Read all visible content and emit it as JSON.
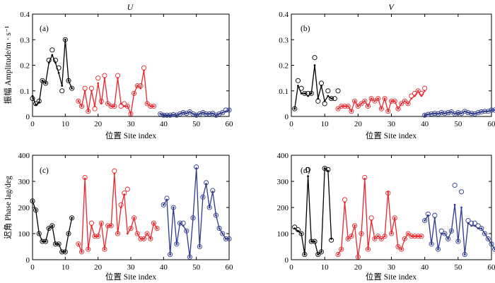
{
  "chart_data": [
    {
      "type": "line",
      "panel_label": "(a)",
      "title": "U",
      "xlabel": "位置 Site index",
      "ylabel": "振幅 Amplitude/m · s⁻¹",
      "xlim": [
        0,
        60
      ],
      "ylim": [
        0,
        0.4
      ],
      "xticks": [
        "0",
        "10",
        "20",
        "30",
        "40",
        "50",
        "60"
      ],
      "yticks": [
        "0",
        "0.1",
        "0.2",
        "0.3",
        "0.4"
      ],
      "grid": false,
      "series": [
        {
          "color": "#000000",
          "x": [
            0,
            1,
            2,
            3,
            4,
            5,
            6,
            7,
            8,
            9,
            10,
            11,
            12,
            13
          ],
          "line": [
            0.08,
            0.045,
            0.055,
            0.14,
            0.13,
            0.21,
            0.24,
            0.21,
            0.17,
            0.12,
            0.3,
            0.14,
            0.11,
            null
          ],
          "markers": [
            0.07,
            0.05,
            0.06,
            0.14,
            0.13,
            0.22,
            0.26,
            0.22,
            0.19,
            0.1,
            0.3,
            0.14,
            0.11,
            null
          ]
        },
        {
          "color": "#e8272d",
          "x": [
            14,
            15,
            16,
            17,
            18,
            19,
            20,
            21,
            22,
            23,
            24,
            25,
            26,
            27,
            28,
            29,
            30,
            31,
            32,
            33,
            34,
            35,
            36,
            37
          ],
          "line": [
            0.06,
            0.04,
            0.1,
            0.02,
            0.1,
            0.04,
            0.13,
            0.05,
            0.15,
            0.05,
            0.04,
            0.04,
            0.15,
            0.05,
            0.04,
            0.04,
            0.01,
            0.09,
            0.12,
            0.11,
            0.18,
            0.05,
            0.04,
            0.04
          ],
          "markers": [
            0.06,
            0.04,
            0.11,
            0.02,
            0.11,
            0.03,
            0.15,
            0.06,
            0.16,
            0.05,
            0.04,
            0.04,
            0.16,
            0.04,
            0.05,
            0.04,
            0.01,
            0.09,
            0.12,
            0.12,
            0.19,
            0.05,
            0.04,
            0.04
          ]
        },
        {
          "color": "#2e3a8c",
          "x": [
            39,
            40,
            41,
            42,
            43,
            44,
            45,
            46,
            47,
            48,
            49,
            50,
            51,
            52,
            53,
            54,
            55,
            56,
            57,
            58,
            59,
            60
          ],
          "line": [
            0.01,
            0.005,
            0.005,
            0.005,
            0.007,
            0.005,
            0.01,
            0.015,
            0.012,
            0.018,
            0.01,
            0.005,
            0.01,
            0.015,
            0.01,
            0.01,
            0.012,
            0.005,
            0.01,
            0.015,
            0.02,
            0.025
          ],
          "markers": [
            0.01,
            0.005,
            0.005,
            0.005,
            0.007,
            0.005,
            0.01,
            0.015,
            0.012,
            0.018,
            0.01,
            0.005,
            0.01,
            0.015,
            0.01,
            0.01,
            0.012,
            0.005,
            0.01,
            0.015,
            0.025,
            0.025
          ]
        }
      ]
    },
    {
      "type": "line",
      "panel_label": "(b)",
      "title": "V",
      "xlabel": "位置 Site index",
      "ylabel": "",
      "xlim": [
        0,
        60
      ],
      "ylim": [
        0,
        0.4
      ],
      "xticks": [
        "0",
        "10",
        "20",
        "30",
        "40",
        "50",
        "60"
      ],
      "yticks": [
        "0",
        "0.1",
        "0.2",
        "0.3",
        "0.4"
      ],
      "grid": false,
      "series": [
        {
          "color": "#000000",
          "x": [
            1,
            2,
            3,
            4,
            5,
            6,
            7,
            8,
            9,
            10,
            11,
            12,
            13,
            14
          ],
          "line": [
            0.03,
            0.12,
            0.09,
            0.09,
            0.08,
            0.09,
            0.2,
            0.07,
            0.12,
            0.06,
            0.08,
            0.07,
            null,
            null
          ],
          "markers": [
            0.03,
            0.14,
            0.11,
            0.09,
            0.09,
            0.09,
            0.23,
            0.06,
            0.13,
            0.05,
            0.1,
            0.07,
            0.07,
            0.1
          ]
        },
        {
          "color": "#e8272d",
          "x": [
            14,
            15,
            16,
            17,
            18,
            19,
            20,
            21,
            22,
            23,
            24,
            25,
            26,
            27,
            28,
            29,
            30,
            31,
            32,
            33,
            34,
            35,
            36,
            37,
            38,
            39,
            40
          ],
          "line": [
            0.03,
            0.04,
            0.04,
            0.04,
            0.02,
            0.06,
            0.04,
            0.05,
            0.06,
            0.04,
            0.07,
            0.06,
            0.07,
            0.03,
            0.07,
            0.02,
            0.06,
            0.06,
            0.03,
            0.05,
            0.06,
            0.05,
            0.07,
            0.08,
            0.1,
            0.08,
            0.1
          ],
          "markers": [
            0.03,
            0.04,
            0.04,
            0.04,
            0.02,
            0.06,
            0.04,
            0.05,
            0.06,
            0.04,
            0.07,
            0.06,
            0.07,
            0.03,
            0.07,
            0.02,
            0.06,
            0.06,
            0.03,
            0.05,
            0.06,
            0.05,
            0.08,
            0.09,
            0.1,
            0.09,
            0.11
          ]
        },
        {
          "color": "#2e3a8c",
          "x": [
            40,
            41,
            42,
            43,
            44,
            45,
            46,
            47,
            48,
            49,
            50,
            51,
            52,
            53,
            54,
            55,
            56,
            57,
            58,
            59,
            60,
            61
          ],
          "line": [
            0.005,
            0.008,
            0.01,
            0.012,
            0.01,
            0.015,
            0.012,
            0.015,
            0.018,
            0.01,
            0.015,
            0.012,
            0.02,
            0.015,
            0.012,
            0.01,
            0.015,
            0.018,
            0.02,
            0.02,
            0.025,
            0.025
          ],
          "markers": [
            0.005,
            0.008,
            0.01,
            0.012,
            0.01,
            0.015,
            0.012,
            0.015,
            0.018,
            0.01,
            0.015,
            0.012,
            0.02,
            0.015,
            0.012,
            0.01,
            0.015,
            0.018,
            0.02,
            0.02,
            0.025,
            0.025
          ]
        }
      ]
    },
    {
      "type": "line",
      "panel_label": "(c)",
      "title": "",
      "xlabel": "位置 Site index",
      "ylabel": "迟角 Phase lag/deg",
      "xlim": [
        0,
        60
      ],
      "ylim": [
        0,
        400
      ],
      "xticks": [
        "0",
        "10",
        "20",
        "30",
        "40",
        "50",
        "60"
      ],
      "yticks": [
        "0",
        "100",
        "200",
        "300",
        "400"
      ],
      "grid": false,
      "series": [
        {
          "color": "#000000",
          "x": [
            0,
            1,
            2,
            3,
            4,
            5,
            6,
            7,
            8,
            9,
            10,
            11,
            12,
            13
          ],
          "line": [
            225,
            190,
            100,
            70,
            70,
            120,
            130,
            60,
            60,
            30,
            30,
            100,
            160,
            null
          ],
          "markers": [
            225,
            190,
            100,
            70,
            70,
            120,
            130,
            60,
            60,
            30,
            30,
            100,
            160,
            null
          ]
        },
        {
          "color": "#e8272d",
          "x": [
            14,
            15,
            16,
            17,
            18,
            19,
            20,
            21,
            22,
            23,
            24,
            25,
            26,
            27,
            28,
            29,
            30,
            31,
            32,
            33,
            34,
            35,
            36,
            37,
            38
          ],
          "line": [
            60,
            30,
            310,
            40,
            130,
            90,
            90,
            140,
            40,
            130,
            130,
            330,
            100,
            200,
            250,
            100,
            120,
            160,
            100,
            80,
            80,
            100,
            80,
            140,
            120
          ],
          "markers": [
            60,
            30,
            315,
            40,
            140,
            90,
            90,
            140,
            40,
            130,
            130,
            340,
            100,
            210,
            255,
            270,
            120,
            160,
            100,
            80,
            80,
            100,
            80,
            140,
            120
          ]
        },
        {
          "color": "#2e3a8c",
          "x": [
            40,
            41,
            42,
            43,
            44,
            45,
            46,
            47,
            48,
            49,
            50,
            51,
            52,
            53,
            54,
            55,
            56,
            57,
            58,
            59,
            60
          ],
          "line": [
            210,
            230,
            20,
            200,
            60,
            140,
            130,
            110,
            10,
            160,
            350,
            50,
            240,
            290,
            200,
            260,
            170,
            120,
            100,
            80,
            80
          ],
          "markers": [
            210,
            235,
            20,
            200,
            60,
            140,
            140,
            110,
            10,
            160,
            355,
            50,
            240,
            295,
            200,
            265,
            170,
            120,
            100,
            80,
            80
          ]
        }
      ]
    },
    {
      "type": "line",
      "panel_label": "(d)",
      "title": "",
      "xlabel": "位置 Site index",
      "ylabel": "",
      "xlim": [
        0,
        60
      ],
      "ylim": [
        0,
        400
      ],
      "xticks": [
        "0",
        "10",
        "20",
        "30",
        "40",
        "50",
        "60"
      ],
      "yticks": [
        "0",
        "100",
        "200",
        "300",
        "400"
      ],
      "grid": false,
      "series": [
        {
          "color": "#000000",
          "x": [
            1,
            2,
            3,
            4,
            5,
            6,
            7,
            8,
            9,
            10,
            11,
            12,
            13,
            14
          ],
          "line": [
            120,
            110,
            100,
            20,
            320,
            70,
            70,
            20,
            30,
            350,
            340,
            80,
            null,
            null
          ],
          "markers": [
            125,
            115,
            100,
            20,
            345,
            70,
            70,
            20,
            30,
            350,
            345,
            75,
            null,
            null
          ]
        },
        {
          "color": "#e8272d",
          "x": [
            14,
            15,
            16,
            17,
            18,
            19,
            20,
            21,
            22,
            23,
            24,
            25,
            26,
            27,
            28,
            29,
            30,
            31,
            32,
            33,
            34,
            35,
            36,
            37,
            38,
            39
          ],
          "line": [
            20,
            40,
            220,
            80,
            90,
            130,
            10,
            100,
            310,
            40,
            150,
            80,
            90,
            80,
            90,
            260,
            100,
            160,
            50,
            40,
            80,
            100,
            90,
            90,
            90,
            90
          ],
          "markers": [
            20,
            40,
            230,
            80,
            90,
            130,
            10,
            100,
            315,
            40,
            160,
            80,
            90,
            80,
            90,
            255,
            100,
            160,
            50,
            40,
            80,
            100,
            90,
            90,
            90,
            90
          ]
        },
        {
          "color": "#2e3a8c",
          "x": [
            40,
            41,
            42,
            43,
            44,
            45,
            46,
            47,
            48,
            49,
            50,
            51,
            52,
            53,
            54,
            55,
            56,
            57,
            58,
            59,
            60,
            61
          ],
          "line": [
            150,
            170,
            60,
            160,
            40,
            100,
            100,
            80,
            110,
            210,
            70,
            200,
            20,
            140,
            130,
            130,
            120,
            120,
            100,
            80,
            60,
            40
          ],
          "markers": [
            150,
            175,
            60,
            170,
            40,
            110,
            100,
            80,
            110,
            285,
            70,
            260,
            20,
            150,
            140,
            140,
            130,
            120,
            100,
            80,
            60,
            40
          ]
        }
      ]
    }
  ]
}
